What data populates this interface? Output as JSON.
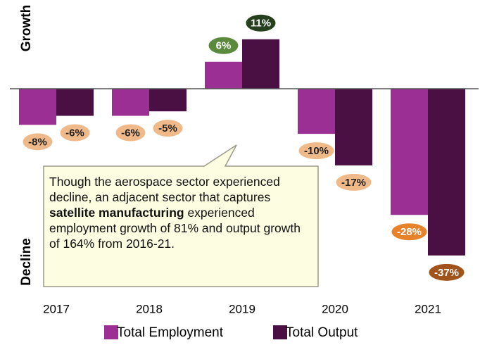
{
  "chart_data": {
    "type": "bar",
    "y_label_top": "Growth",
    "y_label_bottom": "Decline",
    "categories": [
      "2017",
      "2018",
      "2019",
      "2020",
      "2021"
    ],
    "series": [
      {
        "name": "Total Employment",
        "color": "#9c2f94",
        "values": [
          -8,
          -6,
          6,
          -10,
          -28
        ],
        "value_labels": [
          "-8%",
          "-6%",
          "6%",
          "-10%",
          "-28%"
        ],
        "label_colors": [
          "#f0b98a",
          "#f0b98a",
          "#5b8a3c",
          "#f0b98a",
          "#e5822a"
        ]
      },
      {
        "name": "Total Output",
        "color": "#4b1043",
        "values": [
          -6,
          -5,
          11,
          -17,
          -37
        ],
        "value_labels": [
          "-6%",
          "-5%",
          "11%",
          "-17%",
          "-37%"
        ],
        "label_colors": [
          "#f0b98a",
          "#f0b98a",
          "#263f1c",
          "#f0b98a",
          "#a0531b"
        ]
      }
    ],
    "ylim": [
      -45,
      18
    ],
    "annotation": {
      "before": "Though the aerospace sector experienced decline, an adjacent sector that captures ",
      "bold": "satellite manufacturing",
      "after": " experienced employment growth of 81% and output growth of 164% from 2016-21."
    }
  }
}
